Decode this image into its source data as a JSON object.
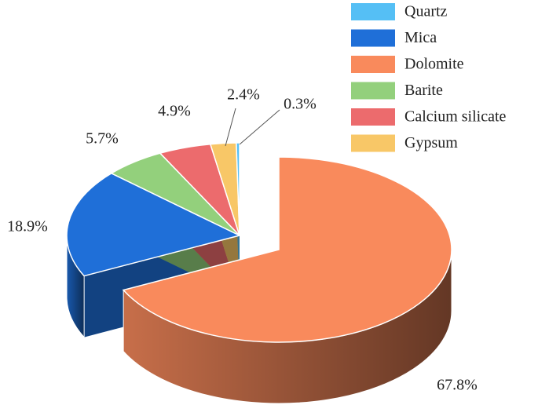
{
  "chart_data": {
    "type": "pie3d",
    "categories": [
      "Quartz",
      "Mica",
      "Dolomite",
      "Barite",
      "Calcium silicate",
      "Gypsum"
    ],
    "values": [
      0.3,
      18.9,
      67.8,
      5.7,
      4.9,
      2.4
    ],
    "value_labels": [
      "0.3%",
      "18.9%",
      "67.8%",
      "5.7%",
      "4.9%",
      "2.4%"
    ],
    "colors": [
      "#55bff5",
      "#1f6fd8",
      "#f98a5c",
      "#93d07c",
      "#ec6b6d",
      "#f8c767"
    ]
  }
}
